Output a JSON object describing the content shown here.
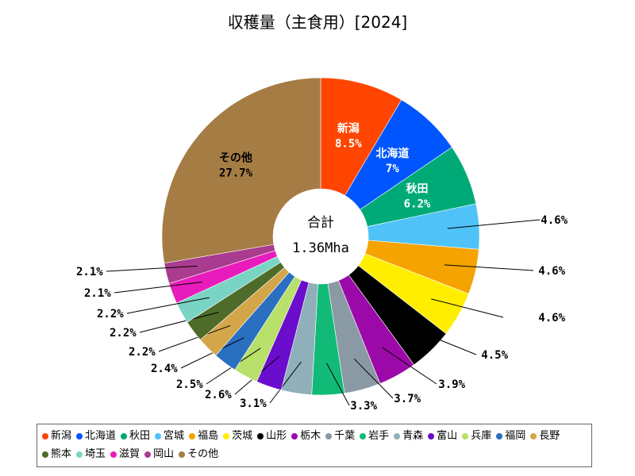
{
  "chart_data": {
    "type": "pie",
    "title": "収穫量（主食用）[2024]",
    "center_label": "合計",
    "center_value": "1.36Mha",
    "categories": [
      "新潟",
      "北海道",
      "秋田",
      "宮城",
      "福島",
      "茨城",
      "山形",
      "栃木",
      "千葉",
      "岩手",
      "青森",
      "富山",
      "兵庫",
      "福岡",
      "長野",
      "熊本",
      "埼玉",
      "滋賀",
      "岡山",
      "その他"
    ],
    "values": [
      8.5,
      7,
      6.2,
      4.6,
      4.6,
      4.6,
      4.5,
      3.9,
      3.7,
      3.3,
      3.1,
      2.6,
      2.5,
      2.4,
      2.2,
      2.2,
      2.2,
      2.1,
      2.1,
      27.7
    ],
    "labels": [
      "8.5%",
      "7%",
      "6.2%",
      "4.6%",
      "4.6%",
      "4.6%",
      "4.5%",
      "3.9%",
      "3.7%",
      "3.3%",
      "3.1%",
      "2.6%",
      "2.5%",
      "2.4%",
      "2.2%",
      "2.2%",
      "2.2%",
      "2.1%",
      "2.1%",
      "27.7%"
    ],
    "colors": [
      "#ff4500",
      "#0055ff",
      "#00aa77",
      "#4fc3f7",
      "#f5a300",
      "#ffee00",
      "#000000",
      "#9b0aa8",
      "#8a9aa5",
      "#11bb77",
      "#8fb0bb",
      "#6a0dcc",
      "#b8e06a",
      "#2a6fc0",
      "#d4a64a",
      "#4f6b2a",
      "#79d4c4",
      "#e81cbc",
      "#a93c8f",
      "#a67c45"
    ],
    "legend_placement": "bottom"
  }
}
